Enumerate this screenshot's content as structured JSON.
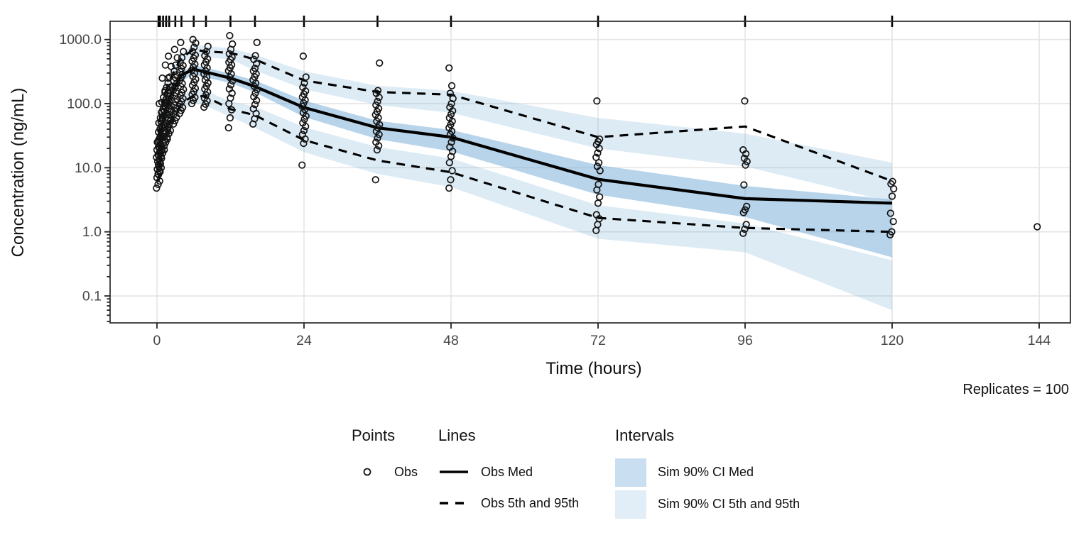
{
  "header": {
    "replicates_label": "Replicates = 100"
  },
  "axes": {
    "x_title": "Time (hours)",
    "y_title": "Concentration (ng/mL)",
    "x_ticks": [
      0,
      24,
      48,
      72,
      96,
      120,
      144
    ],
    "y_ticks": [
      {
        "v": 1000,
        "label": "1000.0"
      },
      {
        "v": 100,
        "label": "100.0"
      },
      {
        "v": 10,
        "label": "10.0"
      },
      {
        "v": 1,
        "label": "1.0"
      },
      {
        "v": 0.1,
        "label": "0.1"
      }
    ]
  },
  "legend": {
    "points_title": "Points",
    "obs_label": "Obs",
    "lines_title": "Lines",
    "obs_med_label": "Obs Med",
    "obs_5_95_label": "Obs 5th and 95th",
    "intervals_title": "Intervals",
    "sim_med_label": "Sim 90% CI Med",
    "sim_5_95_label": "Sim 90% CI 5th and 95th"
  },
  "chart_data": {
    "type": "line",
    "subtype": "vpc",
    "title": "",
    "xlabel": "Time (hours)",
    "ylabel": "Concentration (ng/mL)",
    "log_y": true,
    "x_domain": [
      -7.65,
      149.1
    ],
    "y_domain": [
      0.038,
      1925
    ],
    "grid": "major-only",
    "legend_position": "bottom",
    "bins": [
      0.25,
      0.5,
      1,
      1.5,
      2,
      3,
      4,
      6,
      8,
      12,
      16,
      24,
      36,
      48,
      72,
      96,
      120
    ],
    "rug_times": [
      0.25,
      0.5,
      1,
      1.5,
      2,
      3,
      4,
      6,
      8,
      12,
      16,
      24,
      36,
      48,
      72,
      96,
      120
    ],
    "series": {
      "obs_med": [
        14,
        30,
        55,
        85,
        115,
        190,
        280,
        345,
        310,
        250,
        185,
        87,
        42,
        30,
        6.6,
        3.3,
        2.8
      ],
      "obs_p95": [
        30,
        60,
        110,
        160,
        220,
        350,
        520,
        700,
        650,
        620,
        490,
        230,
        152,
        138,
        30,
        44,
        6.2
      ],
      "obs_p5": [
        6,
        12,
        22,
        33,
        45,
        70,
        100,
        135,
        128,
        82,
        66,
        27,
        13,
        8.5,
        1.65,
        1.15,
        1.0
      ],
      "sim_ci_med": {
        "lo": [
          11,
          24,
          45,
          68,
          95,
          155,
          225,
          285,
          255,
          210,
          150,
          62,
          28,
          18,
          3.8,
          1.7,
          0.4
        ],
        "hi": [
          18,
          38,
          68,
          102,
          140,
          215,
          310,
          400,
          360,
          295,
          230,
          112,
          54,
          39,
          11,
          5.2,
          3.2
        ]
      },
      "sim_ci_p95": {
        "lo": [
          24,
          48,
          88,
          132,
          180,
          290,
          430,
          560,
          530,
          490,
          330,
          168,
          95,
          72,
          20,
          10.5,
          2.9
        ],
        "hi": [
          40,
          78,
          138,
          200,
          270,
          430,
          610,
          830,
          790,
          730,
          580,
          320,
          190,
          158,
          60,
          34,
          12
        ]
      },
      "sim_ci_p5": {
        "lo": [
          4,
          8.5,
          16,
          25,
          35,
          55,
          78,
          102,
          92,
          62,
          42,
          17.5,
          8,
          5,
          0.78,
          0.48,
          0.06
        ],
        "hi": [
          8,
          16,
          29,
          44,
          60,
          92,
          132,
          172,
          158,
          108,
          90,
          43,
          21,
          14,
          2.6,
          1.35,
          0.36
        ]
      }
    },
    "points": [
      {
        "t": 0.25,
        "values": [
          4.8,
          5.5,
          6.2,
          7,
          7.8,
          8.6,
          9.5,
          10.5,
          11.5,
          12.5,
          13.5,
          14.5,
          16,
          17.5,
          19,
          21,
          23,
          25,
          27.5,
          30
        ]
      },
      {
        "t": 0.5,
        "values": [
          8,
          9,
          10,
          11.2,
          12.5,
          14,
          15.5,
          17,
          19,
          21,
          23,
          26,
          29,
          32,
          36,
          40,
          45,
          50,
          60,
          75,
          100
        ]
      },
      {
        "t": 1,
        "values": [
          15,
          17,
          19,
          21.5,
          24,
          27,
          30,
          34,
          38,
          42,
          47,
          52,
          58,
          65,
          73,
          82,
          92,
          105,
          125,
          160,
          250
        ]
      },
      {
        "t": 1.5,
        "values": [
          22,
          25,
          28,
          31,
          35,
          39,
          44,
          49,
          55,
          61,
          68,
          76,
          85,
          95,
          106,
          118,
          132,
          150,
          180,
          250,
          400
        ]
      },
      {
        "t": 2,
        "values": [
          30,
          34,
          38,
          43,
          48,
          54,
          60,
          67,
          75,
          84,
          94,
          105,
          117,
          131,
          146,
          163,
          182,
          210,
          260,
          380,
          550
        ]
      },
      {
        "t": 3,
        "values": [
          48,
          54,
          61,
          68,
          76,
          85,
          95,
          106,
          118,
          132,
          147,
          164,
          183,
          204,
          228,
          254,
          283,
          320,
          400,
          520,
          700
        ]
      },
      {
        "t": 4,
        "values": [
          70,
          78,
          87,
          97,
          108,
          120,
          134,
          149,
          166,
          185,
          206,
          229,
          255,
          284,
          316,
          352,
          392,
          440,
          520,
          650,
          900
        ]
      },
      {
        "t": 6,
        "values": [
          100,
          112,
          125,
          139,
          155,
          173,
          193,
          215,
          240,
          267,
          297,
          331,
          369,
          411,
          458,
          510,
          570,
          650,
          760,
          880,
          1000
        ]
      },
      {
        "t": 8,
        "values": [
          88,
          98,
          110,
          122,
          136,
          152,
          169,
          188,
          210,
          234,
          260,
          290,
          323,
          360,
          401,
          447,
          498,
          560,
          650,
          780
        ]
      },
      {
        "t": 12,
        "values": [
          42,
          60,
          80,
          100,
          122,
          145,
          170,
          197,
          226,
          257,
          290,
          325,
          362,
          401,
          442,
          485,
          530,
          600,
          700,
          850,
          1150
        ]
      },
      {
        "t": 16,
        "values": [
          48,
          58,
          70,
          83,
          97,
          112,
          128,
          146,
          165,
          186,
          209,
          234,
          261,
          290,
          322,
          356,
          420,
          490,
          560,
          900
        ]
      },
      {
        "t": 24,
        "values": [
          11,
          24,
          28,
          33,
          38,
          44,
          50,
          57,
          64,
          72,
          81,
          91,
          102,
          114,
          127,
          141,
          157,
          180,
          210,
          260,
          550
        ]
      },
      {
        "t": 36,
        "values": [
          6.5,
          19,
          22,
          25,
          29,
          33,
          37,
          42,
          47,
          53,
          60,
          67,
          75,
          84,
          95,
          108,
          125,
          145,
          160,
          430
        ]
      },
      {
        "t": 48,
        "values": [
          4.8,
          6.5,
          9,
          12,
          15,
          18,
          21,
          25,
          29,
          33,
          37,
          42,
          47,
          53,
          60,
          68,
          77,
          88,
          100,
          120,
          145,
          190,
          360
        ]
      },
      {
        "t": 72,
        "values": [
          1.05,
          1.3,
          1.6,
          1.85,
          2.8,
          3.5,
          4.5,
          5.5,
          9,
          10.5,
          12,
          14.5,
          17,
          20,
          23,
          25.5,
          28,
          110
        ]
      },
      {
        "t": 96,
        "values": [
          0.95,
          1.1,
          1.3,
          2.0,
          2.2,
          2.5,
          5.4,
          11,
          12.5,
          14,
          16.5,
          19,
          110
        ]
      },
      {
        "t": 120,
        "values": [
          0.9,
          1.0,
          1.45,
          1.95,
          3.6,
          4.7,
          5.6,
          6.1
        ]
      },
      {
        "t": 144,
        "values": [
          1.2
        ]
      }
    ],
    "colors": {
      "ribbon_outer": "rgba(111,170,214,0.24)",
      "ribbon_med": "rgba(111,170,214,0.50)",
      "legend_swatch_med": "#c9def0",
      "legend_swatch_outer": "#e1edf7",
      "line": "#000000",
      "point_stroke": "#131313",
      "grid": "#e4e4e4",
      "panel_border": "#333333",
      "tick": "#222222",
      "tick_label": "#474747"
    }
  }
}
